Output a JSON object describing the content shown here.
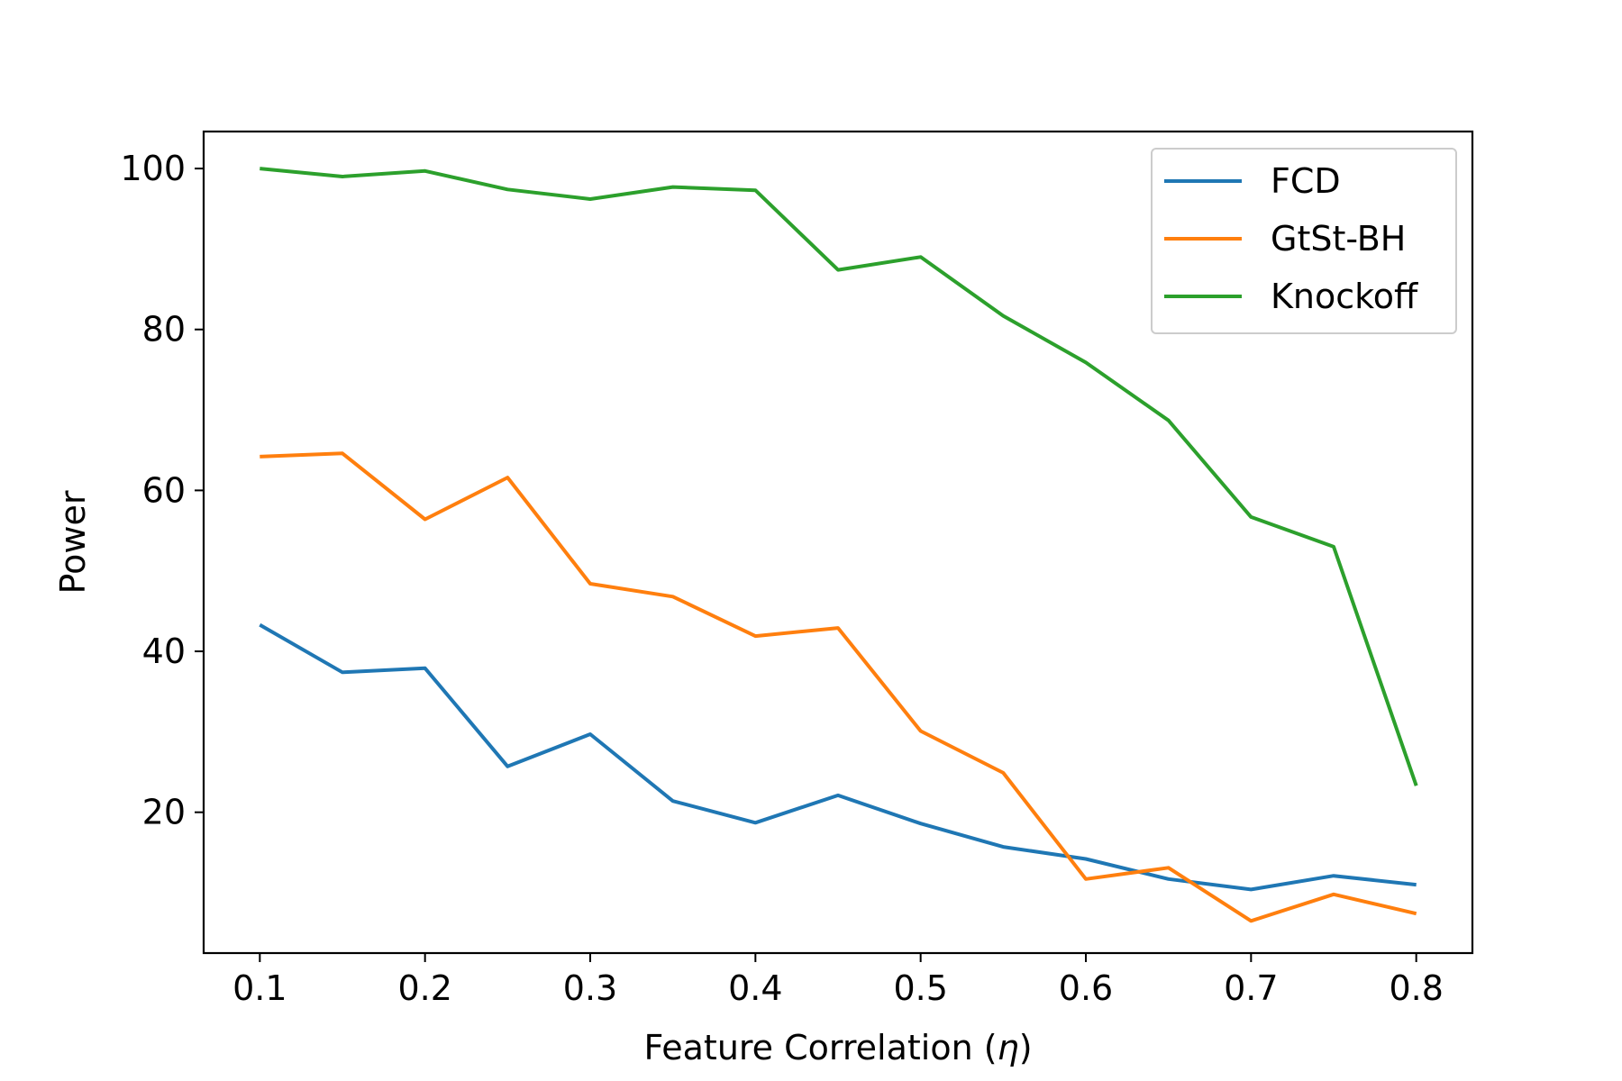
{
  "chart_data": {
    "type": "line",
    "title": "",
    "xlabel": "Feature Correlation (",
    "xlabel_symbol": "η",
    "xlabel_suffix": ")",
    "ylabel": "Power",
    "x": [
      0.1,
      0.15,
      0.2,
      0.25,
      0.3,
      0.35,
      0.4,
      0.45,
      0.5,
      0.55,
      0.6,
      0.65,
      0.7,
      0.75,
      0.8
    ],
    "xlim": [
      0.066,
      0.834
    ],
    "ylim": [
      2.5,
      104.6
    ],
    "xticks": [
      "0.1",
      "0.2",
      "0.3",
      "0.4",
      "0.5",
      "0.6",
      "0.7",
      "0.8"
    ],
    "xtick_values": [
      0.1,
      0.2,
      0.3,
      0.4,
      0.5,
      0.6,
      0.7,
      0.8
    ],
    "yticks": [
      "20",
      "40",
      "60",
      "80",
      "100"
    ],
    "ytick_values": [
      20,
      40,
      60,
      80,
      100
    ],
    "grid": false,
    "legend_position": "top-right",
    "series": [
      {
        "name": "FCD",
        "color": "#1f77b4",
        "values": [
          43.3,
          37.4,
          37.9,
          25.7,
          29.7,
          21.4,
          18.7,
          22.1,
          18.6,
          15.7,
          14.2,
          11.7,
          10.4,
          12.1,
          11.0
        ]
      },
      {
        "name": "GtSt-BH",
        "color": "#ff7f0e",
        "values": [
          64.2,
          64.6,
          56.4,
          61.6,
          48.4,
          46.8,
          41.9,
          42.9,
          30.1,
          24.9,
          11.7,
          13.1,
          6.5,
          9.8,
          7.4
        ]
      },
      {
        "name": "Knockoff",
        "color": "#2ca02c",
        "values": [
          100.0,
          99.0,
          99.7,
          97.4,
          96.2,
          97.7,
          97.3,
          87.4,
          89.0,
          81.7,
          75.9,
          68.7,
          56.7,
          53.0,
          23.3
        ]
      }
    ]
  }
}
